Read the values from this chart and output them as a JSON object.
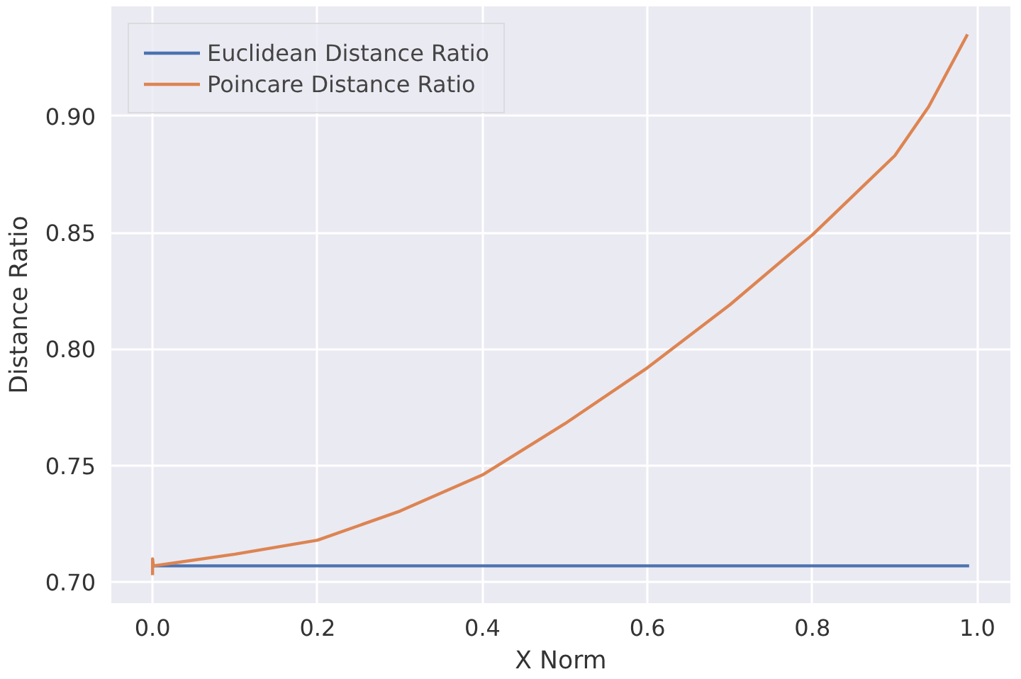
{
  "chart_data": {
    "type": "line",
    "xlabel": "X Norm",
    "ylabel": "Distance Ratio",
    "xlim": [
      -0.05,
      1.04
    ],
    "ylim": [
      0.691,
      0.947
    ],
    "xticks": [
      {
        "value": 0,
        "label": "0.0"
      },
      {
        "value": 0.2,
        "label": "0.2"
      },
      {
        "value": 0.4,
        "label": "0.4"
      },
      {
        "value": 0.6,
        "label": "0.6"
      },
      {
        "value": 0.8,
        "label": "0.8"
      },
      {
        "value": 1,
        "label": "1.0"
      }
    ],
    "yticks": [
      {
        "value": 0.7,
        "label": "0.70"
      },
      {
        "value": 0.75,
        "label": "0.75"
      },
      {
        "value": 0.8,
        "label": "0.80"
      },
      {
        "value": 0.85,
        "label": "0.85"
      },
      {
        "value": 0.9,
        "label": "0.90"
      }
    ],
    "grid": true,
    "legend": "top left",
    "series": [
      {
        "name": "Euclidean Distance Ratio",
        "color": "#4c72b0",
        "x": [
          0,
          0.99
        ],
        "values": [
          0.707,
          0.707
        ]
      },
      {
        "name": "Poincare Distance Ratio",
        "color": "#dd8452",
        "x": [
          0,
          0,
          0.001,
          0.1,
          0.2,
          0.3,
          0.4,
          0.5,
          0.6,
          0.7,
          0.8,
          0.9,
          0.941,
          0.988
        ],
        "values": [
          0.703,
          0.71,
          0.707,
          0.712,
          0.718,
          0.7305,
          0.746,
          0.768,
          0.792,
          0.819,
          0.849,
          0.883,
          0.904,
          0.935
        ]
      }
    ]
  }
}
